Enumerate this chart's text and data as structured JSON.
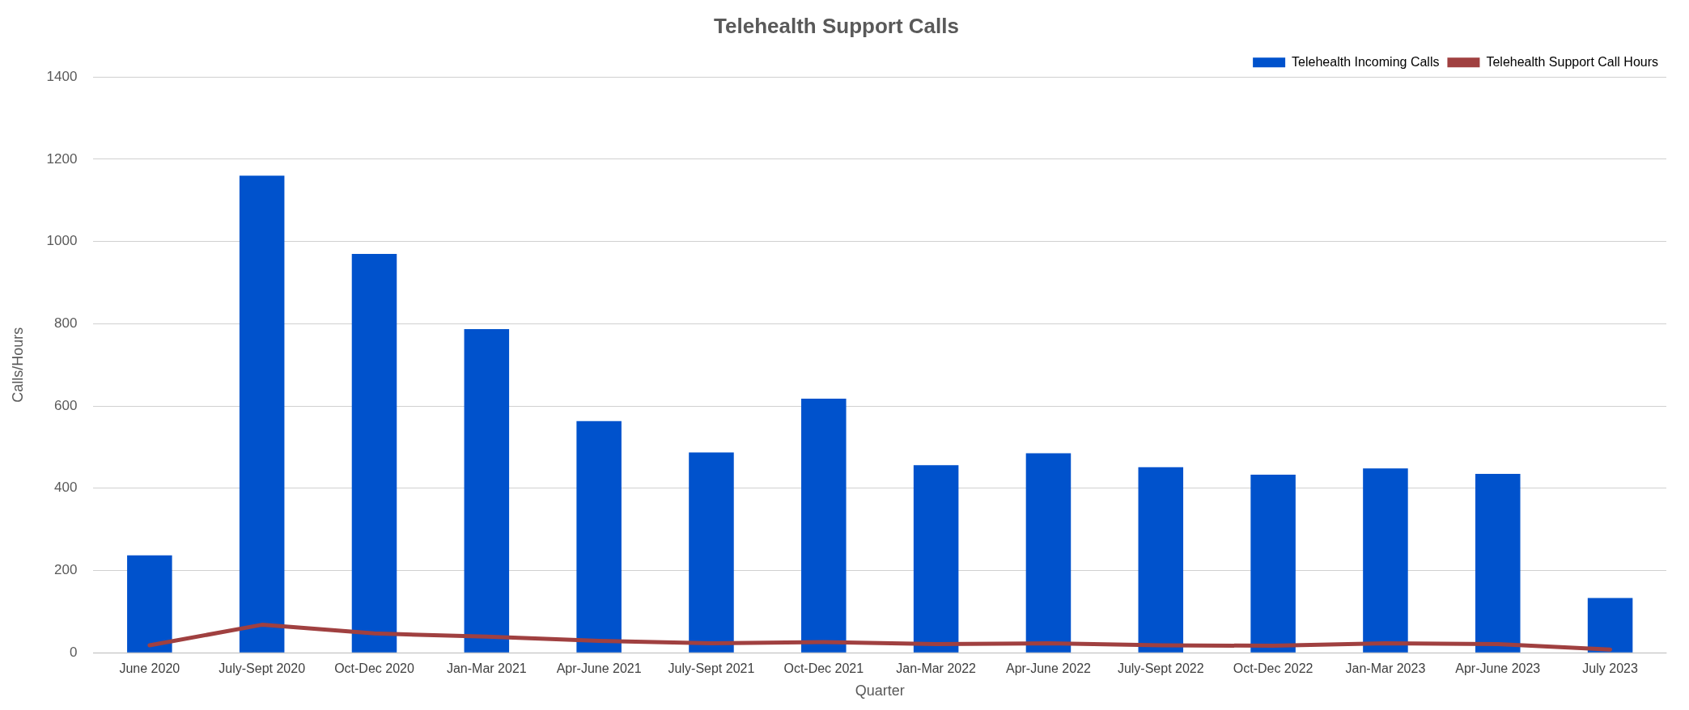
{
  "chart_data": {
    "type": "bar",
    "title": "Telehealth Support Calls",
    "xlabel": "Quarter",
    "ylabel": "Calls/Hours",
    "categories": [
      "June 2020",
      "July-Sept 2020",
      "Oct-Dec 2020",
      "Jan-Mar 2021",
      "Apr-June 2021",
      "July-Sept 2021",
      "Oct-Dec 2021",
      "Jan-Mar 2022",
      "Apr-June 2022",
      "July-Sept 2022",
      "Oct-Dec 2022",
      "Jan-Mar 2023",
      "Apr-June 2023",
      "July 2023"
    ],
    "series": [
      {
        "name": "Telehealth Incoming Calls",
        "color": "#0052cc",
        "values": [
          237,
          1160,
          970,
          787,
          563,
          487,
          618,
          456,
          485,
          451,
          433,
          448,
          435,
          133
        ]
      },
      {
        "name": "Telehealth Support Call Hours",
        "type": "line",
        "color": "#a04040",
        "marker": "none",
        "values": [
          18,
          68,
          47,
          39,
          29,
          23,
          26,
          21,
          23,
          18,
          17,
          23,
          21,
          8
        ]
      }
    ],
    "ylim": [
      0,
      1400
    ],
    "yticks": [
      0,
      200,
      400,
      600,
      800,
      1000,
      1200,
      1400
    ],
    "grid": "y",
    "legend": "top right"
  }
}
